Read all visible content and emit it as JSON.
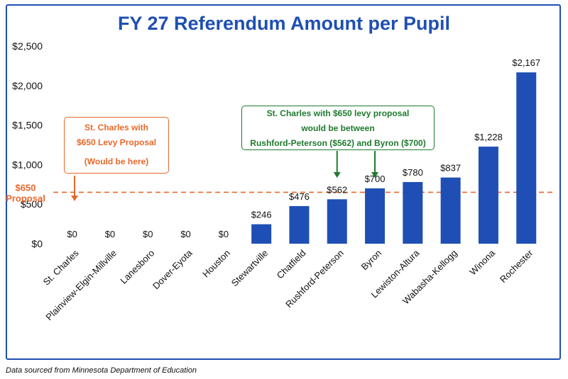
{
  "title": "FY 27 Referendum Amount per Pupil",
  "source_note": "Data sourced from Minnesota Department of Education",
  "colors": {
    "bar": "#1f4fb4",
    "title": "#1f4fb4",
    "proposal": "#e8682a",
    "callout_green": "#1e7a2e"
  },
  "chart_data": {
    "type": "bar",
    "title": "FY 27 Referendum Amount per Pupil",
    "categories": [
      "St. Charles",
      "Plainview-Elgin-Millville",
      "Lanesboro",
      "Dover-Eyota",
      "Houston",
      "Stewartville",
      "Chatfield",
      "Rushford-Peterson",
      "Byron",
      "Lewiston-Altura",
      "Wabasha-Kellogg",
      "Winona",
      "Rochester"
    ],
    "values": [
      0,
      0,
      0,
      0,
      0,
      246,
      476,
      562,
      700,
      780,
      837,
      1228,
      2167
    ],
    "data_labels": [
      "$0",
      "$0",
      "$0",
      "$0",
      "$0",
      "$246",
      "$476",
      "$562",
      "$700",
      "$780",
      "$837",
      "$1,228",
      "$2,167"
    ],
    "y_ticks": [
      0,
      500,
      1000,
      1500,
      2000,
      2500
    ],
    "y_tick_labels": [
      "$0",
      "$500",
      "$1,000",
      "$1,500",
      "$2,000",
      "$2,500"
    ],
    "ylim": [
      0,
      2500
    ],
    "xlabel": "",
    "ylabel": "",
    "grid": false,
    "legend": "none",
    "reference_line": {
      "value": 650,
      "label_line1": "$650",
      "label_line2": "Proposal"
    },
    "annotations": [
      {
        "name": "left-callout",
        "lines": [
          "St. Charles with",
          "$650 Levy Proposal",
          "(Would be here)"
        ],
        "points_to": "St. Charles"
      },
      {
        "name": "right-callout",
        "lines": [
          "St. Charles with $650 levy proposal",
          "would be between",
          "Rushford-Peterson ($562) and Byron ($700)"
        ],
        "points_to": [
          "Rushford-Peterson",
          "Byron"
        ]
      }
    ]
  }
}
